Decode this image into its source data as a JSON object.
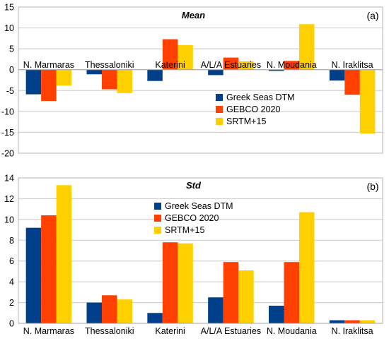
{
  "chart_data": [
    {
      "type": "bar",
      "title": "Mean",
      "panel_label": "(a)",
      "categories": [
        "N. Marmaras",
        "Thessaloniki",
        "Katerini",
        "A/L/A Estuaries",
        "N. Moudania",
        "N. Iraklitsa"
      ],
      "series": [
        {
          "name": "Greek Seas DTM",
          "color": "#003f8a",
          "values": [
            -5.9,
            -1.1,
            -2.7,
            -1.3,
            -0.3,
            -2.6
          ]
        },
        {
          "name": "GEBCO 2020",
          "color": "#ff4000",
          "values": [
            -7.5,
            -4.7,
            7.3,
            2.9,
            2.1,
            -6.0
          ]
        },
        {
          "name": "SRTM+15",
          "color": "#ffd000",
          "values": [
            -3.8,
            -5.6,
            5.9,
            2.0,
            10.9,
            -15.3
          ]
        }
      ],
      "ylim": [
        -20,
        15
      ],
      "yticks": [
        "15",
        "10",
        "5",
        "0",
        "-5",
        "-10",
        "-15",
        "-20"
      ],
      "grid": true,
      "legend_position": "lower-right"
    },
    {
      "type": "bar",
      "title": "Std",
      "panel_label": "(b)",
      "categories": [
        "N. Marmaras",
        "Thessaloniki",
        "Katerini",
        "A/L/A Estuaries",
        "N. Moudania",
        "N. Iraklitsa"
      ],
      "series": [
        {
          "name": "Greek Seas DTM",
          "color": "#003f8a",
          "values": [
            9.2,
            2.0,
            1.0,
            2.5,
            1.7,
            0.3
          ]
        },
        {
          "name": "GEBCO 2020",
          "color": "#ff4000",
          "values": [
            10.4,
            2.7,
            7.8,
            5.9,
            5.9,
            0.3
          ]
        },
        {
          "name": "SRTM+15",
          "color": "#ffd000",
          "values": [
            13.3,
            2.3,
            7.7,
            5.1,
            10.7,
            0.3
          ]
        }
      ],
      "ylim": [
        0,
        14
      ],
      "yticks": [
        "14",
        "12",
        "10",
        "8",
        "6",
        "4",
        "2",
        "0"
      ],
      "grid": true,
      "legend_position": "upper-center"
    }
  ]
}
